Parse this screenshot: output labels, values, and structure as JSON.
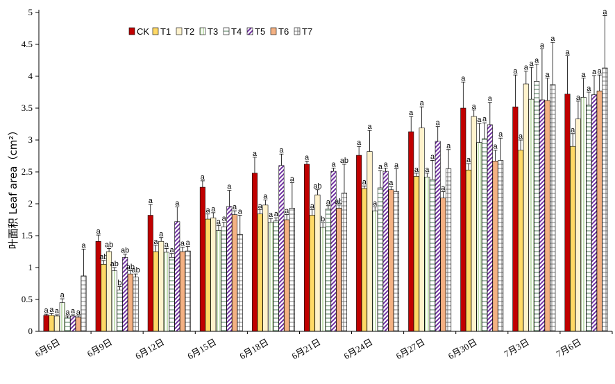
{
  "chart_data": {
    "type": "bar",
    "ylabel": "叶面积 Leaf area（cm²）",
    "ylim": [
      0,
      5
    ],
    "yticks": [
      "0",
      "0.5",
      "1",
      "1.5",
      "2",
      "2.5",
      "3",
      "3.5",
      "4",
      "4.5",
      "5"
    ],
    "categories": [
      "6月6日",
      "6月9日",
      "6月12日",
      "6月15日",
      "6月18日",
      "6月21日",
      "6月24日",
      "6月27日",
      "6月30日",
      "7月3日",
      "7月6日"
    ],
    "legend_position": "top-left",
    "series": [
      {
        "name": "CK",
        "color": "#c00000",
        "pattern": "solid",
        "values": [
          0.25,
          1.41,
          1.82,
          2.26,
          2.48,
          2.62,
          2.76,
          3.13,
          3.5,
          3.52,
          3.72
        ],
        "errors": [
          0.02,
          0.1,
          0.17,
          0.1,
          0.25,
          0.05,
          0.14,
          0.24,
          0.41,
          0.5,
          0.6
        ],
        "sig": [
          "a",
          "a",
          "a",
          "a",
          "a",
          "a",
          "a",
          "a",
          "a",
          "a",
          "a"
        ]
      },
      {
        "name": "T1",
        "color": "#ffd966",
        "pattern": "solid",
        "values": [
          0.25,
          1.05,
          1.25,
          1.76,
          1.84,
          1.82,
          2.24,
          2.43,
          2.53,
          2.84,
          2.9
        ],
        "errors": [
          0.03,
          0.06,
          0.1,
          0.08,
          0.07,
          0.09,
          0.04,
          0.05,
          0.1,
          0.16,
          0.2
        ],
        "sig": [
          "a",
          "ab",
          "a",
          "a",
          "a",
          "a",
          "a",
          "a",
          "a",
          "a",
          "a"
        ]
      },
      {
        "name": "T2",
        "color": "#fff2cc",
        "pattern": "solid",
        "values": [
          0.24,
          1.25,
          1.41,
          1.78,
          1.98,
          2.14,
          2.82,
          3.19,
          3.37,
          3.88,
          3.33
        ],
        "errors": [
          0.02,
          0.05,
          0.06,
          0.08,
          0.08,
          0.08,
          0.33,
          0.33,
          0.1,
          0.2,
          0.28
        ],
        "sig": [
          "a",
          "ab",
          "a",
          "a",
          "a",
          "ab",
          "a",
          "a",
          "a",
          "a",
          "a"
        ]
      },
      {
        "name": "T3",
        "color": "#c5e0b4",
        "pattern": "stripe",
        "values": [
          0.45,
          0.95,
          1.24,
          1.58,
          1.71,
          1.63,
          1.89,
          2.42,
          2.96,
          3.64,
          3.67
        ],
        "errors": [
          0.06,
          0.05,
          0.06,
          0.08,
          0.06,
          0.07,
          0.06,
          0.06,
          0.3,
          0.5,
          0.3
        ],
        "sig": [
          "a",
          "ab",
          "a",
          "a",
          "a",
          "b",
          "a",
          "a",
          "a",
          "a",
          "a"
        ]
      },
      {
        "name": "T4",
        "color": "#ffffff",
        "pattern": "hline",
        "values": [
          0.21,
          0.65,
          1.16,
          1.64,
          1.73,
          1.92,
          2.25,
          2.38,
          3.02,
          3.92,
          3.55
        ],
        "errors": [
          0.03,
          0.05,
          0.06,
          0.07,
          0.05,
          0.05,
          0.27,
          0.3,
          0.25,
          0.27,
          0.2
        ],
        "sig": [
          "a",
          "b",
          "a",
          "a",
          "a",
          "a",
          "a",
          "a",
          "a",
          "a",
          "a"
        ]
      },
      {
        "name": "T5",
        "color": "#7030a0",
        "pattern": "diag",
        "values": [
          0.24,
          1.16,
          1.72,
          1.96,
          2.6,
          2.51,
          2.51,
          2.98,
          3.24,
          3.63,
          3.71
        ],
        "errors": [
          0.02,
          0.05,
          0.23,
          0.25,
          0.18,
          0.05,
          0.05,
          0.23,
          0.35,
          0.8,
          0.3
        ],
        "sig": [
          "a",
          "ab",
          "a",
          "a",
          "a",
          "a",
          "a",
          "a",
          "a",
          "a",
          "a"
        ]
      },
      {
        "name": "T6",
        "color": "#f4b183",
        "pattern": "solid",
        "values": [
          0.22,
          0.9,
          1.25,
          1.83,
          1.75,
          1.93,
          2.22,
          2.09,
          2.67,
          3.62,
          3.77
        ],
        "errors": [
          0.02,
          0.05,
          0.07,
          0.06,
          0.08,
          0.05,
          0.05,
          0.1,
          0.17,
          0.35,
          0.25
        ],
        "sig": [
          "a",
          "ab",
          "a",
          "a",
          "a",
          "ab",
          "a",
          "a",
          "a",
          "a",
          "a"
        ]
      },
      {
        "name": "T7",
        "color": "#ffffff",
        "pattern": "grid",
        "values": [
          0.87,
          0.85,
          1.26,
          1.52,
          1.93,
          2.17,
          2.19,
          2.55,
          2.68,
          3.87,
          4.13
        ],
        "errors": [
          0.42,
          0.05,
          0.07,
          0.3,
          0.4,
          0.45,
          0.36,
          0.3,
          0.35,
          0.66,
          0.82
        ],
        "sig": [
          "a",
          "ab",
          "a",
          "a",
          "a",
          "ab",
          "a",
          "a",
          "a",
          "a",
          "a"
        ]
      }
    ]
  }
}
